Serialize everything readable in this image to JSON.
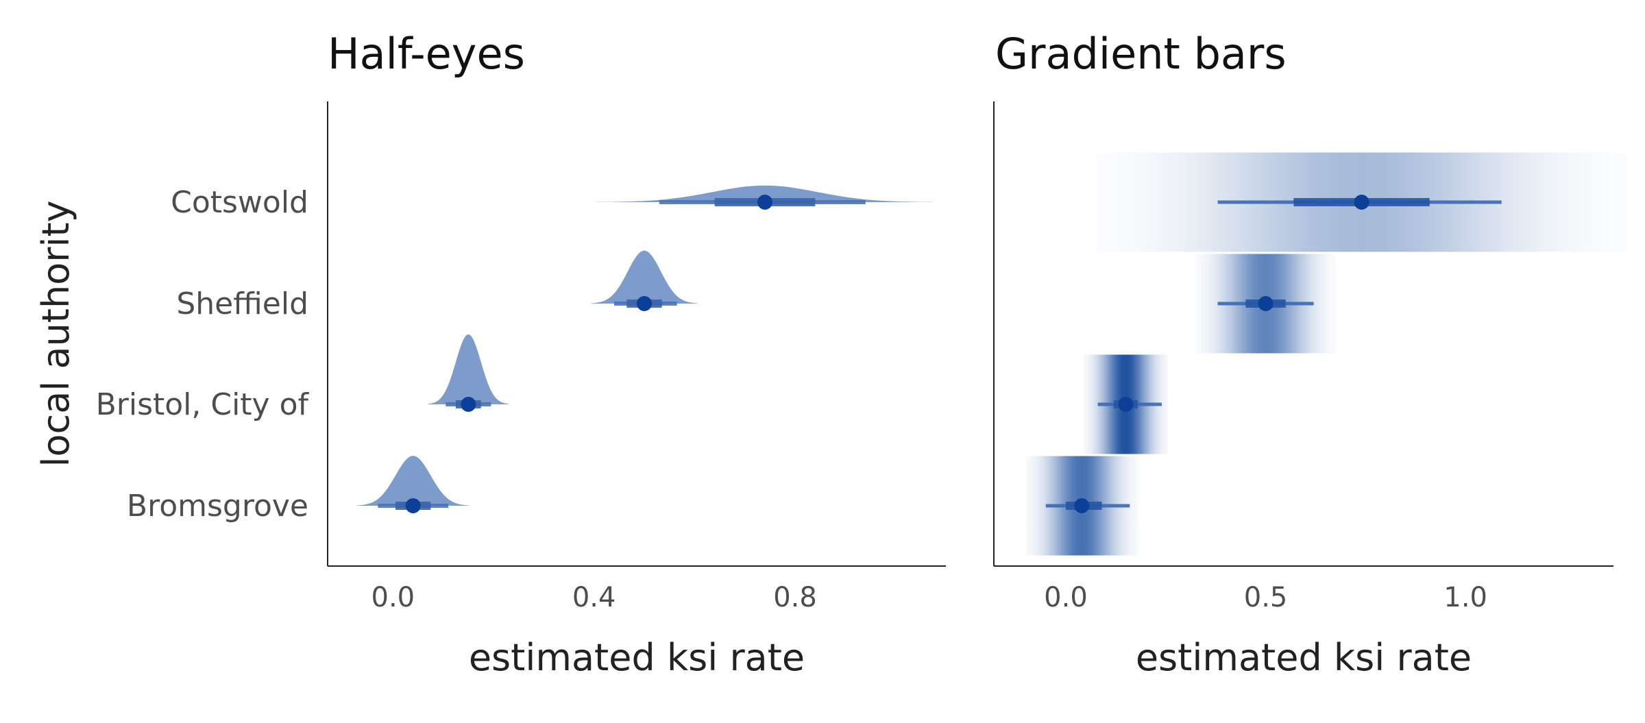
{
  "chart_data": [
    {
      "type": "half-eye",
      "title": "Half-eyes",
      "xlabel": "estimated ksi rate",
      "ylabel": "local authority",
      "xlim": [
        -0.13,
        1.1
      ],
      "xticks": [
        0.0,
        0.4,
        0.8
      ],
      "xtick_labels": [
        "0.0",
        "0.4",
        "0.8"
      ],
      "categories": [
        "Cotswold",
        "Sheffield",
        "Bristol, City of",
        "Bromsgrove"
      ],
      "estimates": [
        {
          "category": "Cotswold",
          "point": 0.74,
          "sd": 0.105,
          "interval_66": [
            0.64,
            0.84
          ],
          "interval_95": [
            0.53,
            0.94
          ]
        },
        {
          "category": "Sheffield",
          "point": 0.5,
          "sd": 0.033,
          "interval_66": [
            0.465,
            0.535
          ],
          "interval_95": [
            0.44,
            0.565
          ]
        },
        {
          "category": "Bristol, City of",
          "point": 0.15,
          "sd": 0.025,
          "interval_66": [
            0.125,
            0.175
          ],
          "interval_95": [
            0.105,
            0.195
          ]
        },
        {
          "category": "Bromsgrove",
          "point": 0.04,
          "sd": 0.035,
          "interval_66": [
            0.005,
            0.075
          ],
          "interval_95": [
            -0.03,
            0.11
          ]
        }
      ],
      "colors": {
        "density": "#7d9ccb",
        "interval_outer": "#4a73b4",
        "interval_inner": "#3963ab",
        "point": "#0b3f98"
      }
    },
    {
      "type": "gradient-interval",
      "title": "Gradient bars",
      "xlabel": "estimated ksi rate",
      "xlim": [
        -0.18,
        1.37
      ],
      "xticks": [
        0.0,
        0.5,
        1.0
      ],
      "xtick_labels": [
        "0.0",
        "0.5",
        "1.0"
      ],
      "categories": [
        "Cotswold",
        "Sheffield",
        "Bristol, City of",
        "Bromsgrove"
      ],
      "estimates": [
        {
          "category": "Cotswold",
          "point": 0.74,
          "sd": 0.19,
          "interval_66": [
            0.57,
            0.91
          ],
          "interval_95": [
            0.38,
            1.09
          ]
        },
        {
          "category": "Sheffield",
          "point": 0.5,
          "sd": 0.05,
          "interval_66": [
            0.45,
            0.55
          ],
          "interval_95": [
            0.38,
            0.62
          ]
        },
        {
          "category": "Bristol, City of",
          "point": 0.15,
          "sd": 0.03,
          "interval_66": [
            0.12,
            0.18
          ],
          "interval_95": [
            0.08,
            0.24
          ]
        },
        {
          "category": "Bromsgrove",
          "point": 0.04,
          "sd": 0.04,
          "interval_66": [
            0.0,
            0.09
          ],
          "interval_95": [
            -0.05,
            0.16
          ]
        }
      ],
      "colors": {
        "gradient": "#1e52a0",
        "interval_outer": "#3a68b0",
        "interval_inner": "#2655a3",
        "point": "#0b3f98"
      }
    }
  ]
}
